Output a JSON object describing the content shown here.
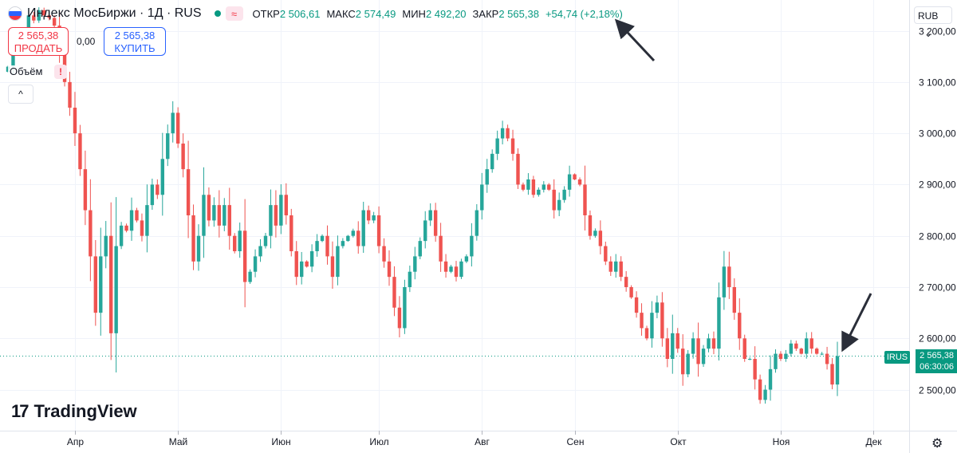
{
  "header": {
    "title": "Индекс МосБиржи · 1Д · RUS",
    "open_label": "ОТКР",
    "open_value": "2 506,61",
    "high_label": "МАКС",
    "high_value": "2 574,49",
    "low_label": "МИН",
    "low_value": "2 492,20",
    "close_label": "ЗАКР",
    "close_value": "2 565,38",
    "change": "+54,74 (+2,18%)",
    "approx_icon": "≈"
  },
  "trade": {
    "sell_price": "2 565,38",
    "sell_label": "ПРОДАТЬ",
    "spread": "0,00",
    "buy_price": "2 565,38",
    "buy_label": "КУПИТЬ"
  },
  "volume": {
    "label": "Объём",
    "warning": "!",
    "collapse": "^"
  },
  "logo": {
    "text": "TradingView",
    "mark": "17"
  },
  "currency": {
    "label": "RUB",
    "chevron": "⌄"
  },
  "last_price": {
    "symbol": "IRUS",
    "price": "2 565,38",
    "countdown": "06:30:06"
  },
  "colors": {
    "up": "#26a69a",
    "down": "#ef5350",
    "badge": "#089981",
    "arrow": "#2a2e39"
  },
  "chart_data": {
    "type": "candlestick",
    "title": "Индекс МосБиржи · 1Д · RUS",
    "currency": "RUB",
    "ylim": [
      2420,
      3260
    ],
    "y_ticks": [
      2500,
      2600,
      2700,
      2800,
      2900,
      3000,
      3100,
      3200
    ],
    "y_tick_labels": [
      "2 500,00",
      "2 600,00",
      "2 700,00",
      "2 800,00",
      "2 900,00",
      "3 000,00",
      "3 100,00",
      "3 200,00"
    ],
    "x_months": [
      {
        "label": "Апр",
        "index": 13
      },
      {
        "label": "Май",
        "index": 33
      },
      {
        "label": "Июн",
        "index": 53
      },
      {
        "label": "Июл",
        "index": 72
      },
      {
        "label": "Авг",
        "index": 92
      },
      {
        "label": "Сен",
        "index": 110
      },
      {
        "label": "Окт",
        "index": 130
      },
      {
        "label": "Ноя",
        "index": 150
      },
      {
        "label": "Дек",
        "index": 168
      }
    ],
    "closes": [
      3130,
      3180,
      3190,
      3200,
      3230,
      3220,
      3240,
      3230,
      3225,
      3210,
      3160,
      3100,
      3050,
      3000,
      2930,
      2850,
      2760,
      2650,
      2760,
      2800,
      2610,
      2780,
      2820,
      2810,
      2850,
      2830,
      2800,
      2860,
      2900,
      2880,
      2950,
      3000,
      3040,
      2980,
      2930,
      2840,
      2750,
      2800,
      2880,
      2830,
      2860,
      2820,
      2860,
      2800,
      2770,
      2810,
      2710,
      2730,
      2760,
      2780,
      2800,
      2860,
      2820,
      2880,
      2840,
      2770,
      2720,
      2750,
      2740,
      2770,
      2790,
      2800,
      2760,
      2720,
      2780,
      2790,
      2800,
      2810,
      2780,
      2850,
      2830,
      2840,
      2780,
      2750,
      2720,
      2660,
      2620,
      2700,
      2730,
      2760,
      2790,
      2830,
      2850,
      2800,
      2750,
      2730,
      2740,
      2720,
      2750,
      2760,
      2800,
      2850,
      2900,
      2930,
      2960,
      2990,
      3010,
      2990,
      2960,
      2900,
      2890,
      2910,
      2880,
      2890,
      2900,
      2890,
      2850,
      2870,
      2890,
      2920,
      2910,
      2900,
      2840,
      2800,
      2810,
      2780,
      2750,
      2730,
      2750,
      2720,
      2700,
      2680,
      2650,
      2620,
      2600,
      2650,
      2670,
      2600,
      2560,
      2610,
      2580,
      2530,
      2570,
      2600,
      2550,
      2580,
      2600,
      2580,
      2680,
      2740,
      2700,
      2650,
      2600,
      2560,
      2560,
      2520,
      2480,
      2500,
      2540,
      2570,
      2560,
      2570,
      2590,
      2580,
      2570,
      2600,
      2580,
      2570,
      2570,
      2550,
      2510,
      2565.38
    ]
  }
}
